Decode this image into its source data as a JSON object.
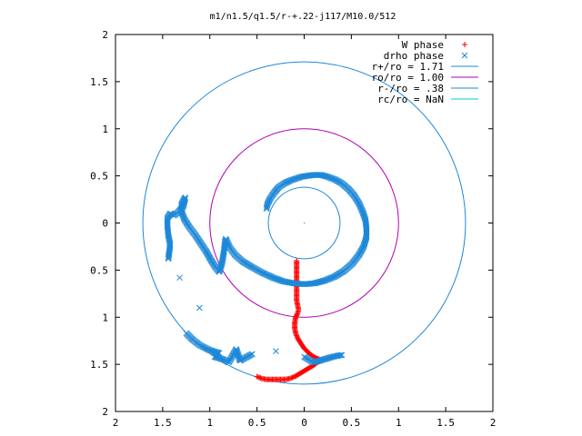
{
  "colors": {
    "background": "#ffffff",
    "axis": "#000000",
    "w_phase": "#ff0000",
    "drho_phase": "#1e88d8",
    "r_plus": "#1e88d8",
    "r_o": "#b000b0",
    "r_minus": "#1e88d8",
    "r_c": "#00c8d8"
  },
  "chart_data": {
    "type": "scatter",
    "title": "m1/n1.5/q1.5/r-+.22-j117/M10.0/512",
    "xlabel": "",
    "ylabel": "",
    "xlim": [
      -2,
      2
    ],
    "ylim": [
      -2,
      2
    ],
    "grid": false,
    "legend_position": "top-right",
    "x_tick_values": [
      -2,
      -1.5,
      -1,
      -0.5,
      0,
      0.5,
      1,
      1.5,
      2
    ],
    "x_tick_labels": [
      "2",
      "1.5",
      "1",
      "0.5",
      "0",
      "0.5",
      "1",
      "1.5",
      "2"
    ],
    "y_tick_values": [
      2,
      1.5,
      1,
      0.5,
      0,
      -0.5,
      -1,
      -1.5,
      -2
    ],
    "y_tick_labels": [
      "2",
      "1.5",
      "1",
      "0.5",
      "0",
      "0.5",
      "1",
      "1.5",
      "2"
    ],
    "circles": [
      {
        "name": "r+/ro = 1.71",
        "radius": 1.71,
        "color": "#1e88d8"
      },
      {
        "name": "ro/ro = 1.00",
        "radius": 1.0,
        "color": "#b000b0"
      },
      {
        "name": "r-/ro = .38",
        "radius": 0.38,
        "color": "#1e88d8"
      },
      {
        "name": "rc/ro = NaN",
        "radius": null,
        "color": "#00c8d8"
      }
    ],
    "series": [
      {
        "name": "W phase",
        "marker": "plus",
        "color": "#ff0000",
        "points": [
          [
            -0.5,
            -1.63
          ],
          [
            -0.45,
            -1.65
          ],
          [
            -0.4,
            -1.66
          ],
          [
            -0.35,
            -1.66
          ],
          [
            -0.3,
            -1.66
          ],
          [
            -0.25,
            -1.66
          ],
          [
            -0.2,
            -1.66
          ],
          [
            -0.15,
            -1.65
          ],
          [
            -0.1,
            -1.63
          ],
          [
            -0.05,
            -1.6
          ],
          [
            0.0,
            -1.57
          ],
          [
            0.05,
            -1.54
          ],
          [
            0.1,
            -1.51
          ],
          [
            0.14,
            -1.48
          ],
          [
            0.17,
            -1.46
          ],
          [
            0.17,
            -1.45
          ],
          [
            0.14,
            -1.44
          ],
          [
            0.1,
            -1.42
          ],
          [
            0.05,
            -1.38
          ],
          [
            0.0,
            -1.33
          ],
          [
            -0.04,
            -1.27
          ],
          [
            -0.07,
            -1.22
          ],
          [
            -0.09,
            -1.17
          ],
          [
            -0.1,
            -1.12
          ],
          [
            -0.1,
            -1.06
          ],
          [
            -0.09,
            -1.0
          ],
          [
            -0.07,
            -0.96
          ],
          [
            -0.06,
            -0.92
          ],
          [
            -0.07,
            -0.87
          ],
          [
            -0.08,
            -0.82
          ],
          [
            -0.08,
            -0.76
          ],
          [
            -0.08,
            -0.7
          ],
          [
            -0.08,
            -0.64
          ],
          [
            -0.08,
            -0.58
          ],
          [
            -0.08,
            -0.52
          ],
          [
            -0.08,
            -0.46
          ],
          [
            -0.08,
            -0.4
          ]
        ]
      },
      {
        "name": "drho phase",
        "marker": "cross",
        "color": "#1e88d8",
        "points": [
          [
            -0.4,
            0.15
          ],
          [
            -0.39,
            0.2
          ],
          [
            -0.36,
            0.26
          ],
          [
            -0.32,
            0.32
          ],
          [
            -0.27,
            0.38
          ],
          [
            -0.21,
            0.42
          ],
          [
            -0.15,
            0.45
          ],
          [
            -0.09,
            0.47
          ],
          [
            -0.03,
            0.49
          ],
          [
            0.03,
            0.5
          ],
          [
            0.1,
            0.51
          ],
          [
            0.18,
            0.51
          ],
          [
            0.25,
            0.49
          ],
          [
            0.33,
            0.46
          ],
          [
            0.4,
            0.42
          ],
          [
            0.47,
            0.36
          ],
          [
            0.53,
            0.29
          ],
          [
            0.58,
            0.21
          ],
          [
            0.62,
            0.12
          ],
          [
            0.65,
            0.03
          ],
          [
            0.66,
            -0.06
          ],
          [
            0.66,
            -0.15
          ],
          [
            0.63,
            -0.25
          ],
          [
            0.58,
            -0.34
          ],
          [
            0.51,
            -0.43
          ],
          [
            0.42,
            -0.51
          ],
          [
            0.32,
            -0.57
          ],
          [
            0.22,
            -0.61
          ],
          [
            0.11,
            -0.64
          ],
          [
            0.0,
            -0.65
          ],
          [
            -0.11,
            -0.64
          ],
          [
            -0.22,
            -0.62
          ],
          [
            -0.33,
            -0.58
          ],
          [
            -0.44,
            -0.53
          ],
          [
            -0.55,
            -0.47
          ],
          [
            -0.65,
            -0.41
          ],
          [
            -0.73,
            -0.34
          ],
          [
            -0.79,
            -0.26
          ],
          [
            -0.83,
            -0.17
          ],
          [
            -0.84,
            -0.2
          ],
          [
            -0.85,
            -0.3
          ],
          [
            -0.87,
            -0.42
          ],
          [
            -0.9,
            -0.52
          ],
          [
            -0.94,
            -0.47
          ],
          [
            -0.99,
            -0.39
          ],
          [
            -1.04,
            -0.3
          ],
          [
            -1.1,
            -0.21
          ],
          [
            -1.16,
            -0.12
          ],
          [
            -1.22,
            -0.04
          ],
          [
            -1.27,
            0.04
          ],
          [
            -1.3,
            0.12
          ],
          [
            -1.3,
            0.2
          ],
          [
            -1.26,
            0.27
          ],
          [
            -1.28,
            0.18
          ],
          [
            -1.33,
            0.12
          ],
          [
            -1.38,
            0.08
          ],
          [
            -1.42,
            0.1
          ],
          [
            -1.45,
            0.05
          ],
          [
            -1.45,
            -0.03
          ],
          [
            -1.44,
            -0.13
          ],
          [
            -1.42,
            -0.23
          ],
          [
            -1.44,
            -0.38
          ],
          [
            -1.32,
            -0.58
          ],
          [
            -1.11,
            -0.9
          ],
          [
            -1.25,
            -1.17
          ],
          [
            -1.18,
            -1.24
          ],
          [
            -1.1,
            -1.3
          ],
          [
            -1.0,
            -1.35
          ],
          [
            -0.9,
            -1.38
          ],
          [
            -0.95,
            -1.42
          ],
          [
            -0.85,
            -1.45
          ],
          [
            -0.8,
            -1.48
          ],
          [
            -0.72,
            -1.34
          ],
          [
            -0.68,
            -1.46
          ],
          [
            -0.55,
            -1.39
          ],
          [
            -0.3,
            -1.36
          ],
          [
            0.0,
            -1.42
          ],
          [
            0.1,
            -1.48
          ],
          [
            0.2,
            -1.45
          ],
          [
            0.3,
            -1.42
          ],
          [
            0.4,
            -1.4
          ]
        ]
      }
    ]
  }
}
